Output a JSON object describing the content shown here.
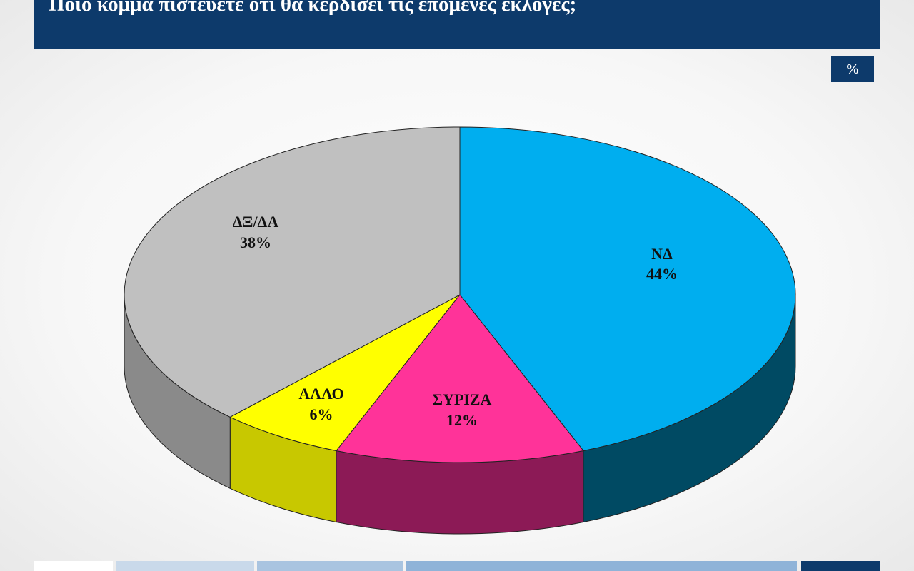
{
  "header": {
    "title": "Ποιο κόμμα πιστεύετε ότι θα κερδίσει τις επόμενες εκλογές;",
    "unit": "%"
  },
  "chart_data": {
    "type": "pie",
    "title": "Ποιο κόμμα πιστεύετε ότι θα κερδίσει τις επόμενες εκλογές;",
    "unit": "%",
    "slices": [
      {
        "label": "ΝΔ",
        "value": 44,
        "display": "44%",
        "color": "#00aeef",
        "side_color": "#004a63"
      },
      {
        "label": "ΣΥΡΙΖΑ",
        "value": 12,
        "display": "12%",
        "color": "#ff3399",
        "side_color": "#8c1a56"
      },
      {
        "label": "ΑΛΛΟ",
        "value": 6,
        "display": "6%",
        "color": "#ffff00",
        "side_color": "#c8c800"
      },
      {
        "label": "ΔΞ/ΔΑ",
        "value": 38,
        "display": "38%",
        "color": "#c0c0c0",
        "side_color": "#8a8a8a"
      }
    ]
  },
  "footer": {
    "colors": [
      "#ffffff",
      "#c9d9ea",
      "#a9c4e0",
      "#8fb3d8",
      "#0d3a6b"
    ]
  }
}
